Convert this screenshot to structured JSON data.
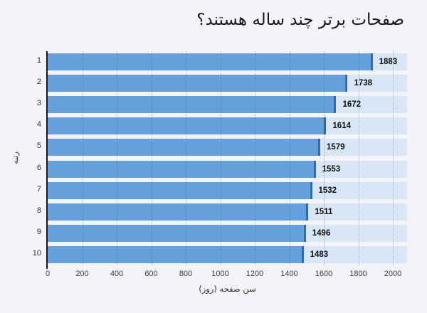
{
  "chart_data": {
    "type": "bar",
    "orientation": "horizontal",
    "title": "صفحات برتر چند ساله هستند؟",
    "xlabel": "سن صفحه (روز)",
    "ylabel": "رتبه",
    "categories": [
      "1",
      "2",
      "3",
      "4",
      "5",
      "6",
      "7",
      "8",
      "9",
      "10"
    ],
    "values": [
      1883,
      1738,
      1672,
      1614,
      1579,
      1553,
      1532,
      1511,
      1496,
      1483
    ],
    "xlim": [
      0,
      2080
    ],
    "xticks": [
      0,
      200,
      400,
      600,
      800,
      1000,
      1200,
      1400,
      1600,
      1800,
      2000
    ],
    "grid": "vertical-dotted",
    "legend_position": "none",
    "colors": {
      "page_background": "#f2f4f7",
      "row_track": "#d9e6f6",
      "bar_fill": "#66a0dc",
      "bar_edge": "#2d6bb4",
      "axis_line": "#17181c",
      "text": "#17171b"
    }
  }
}
